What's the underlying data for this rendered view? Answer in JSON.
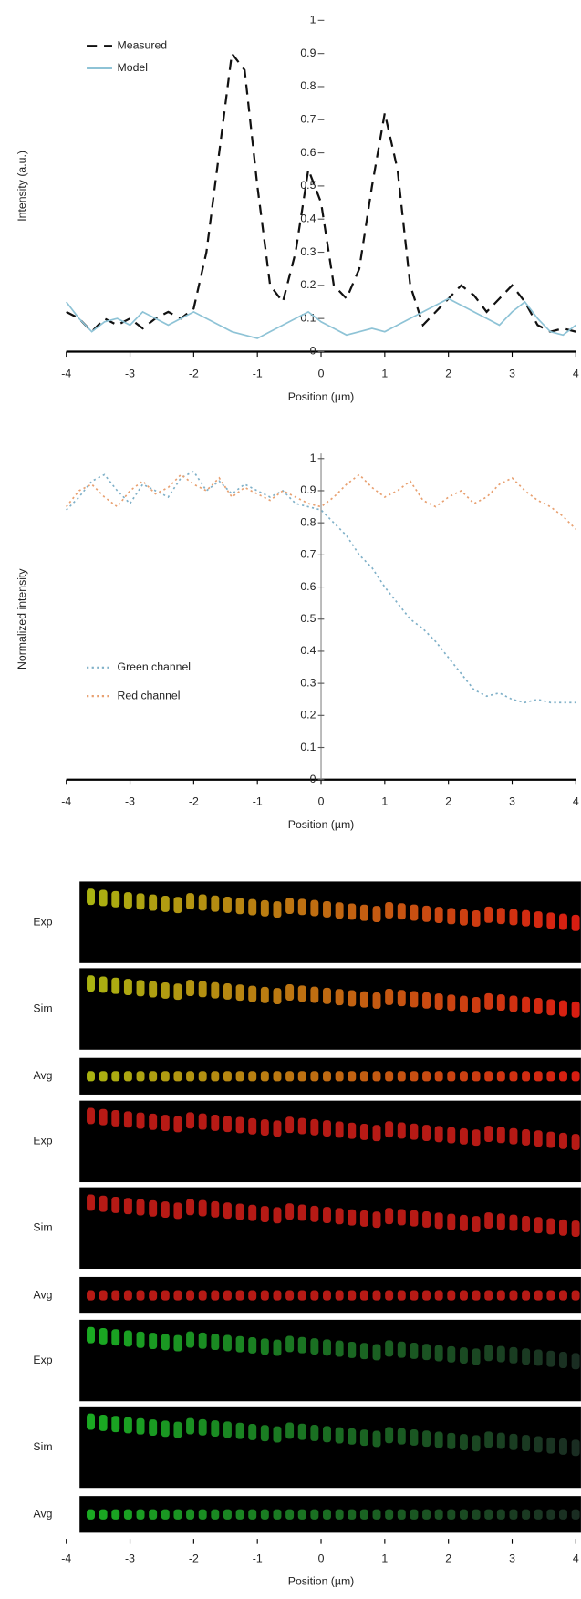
{
  "chart_data": [
    {
      "type": "line",
      "y_label": "Intensity (a.u.)",
      "x_label": "Position (µm)",
      "x": [
        -4,
        -3.8,
        -3.6,
        -3.4,
        -3.2,
        -3,
        -2.8,
        -2.6,
        -2.4,
        -2.2,
        -2,
        -1.8,
        -1.6,
        -1.4,
        -1.2,
        -1,
        -0.8,
        -0.6,
        -0.4,
        -0.2,
        0,
        0.2,
        0.4,
        0.6,
        0.8,
        1,
        1.2,
        1.4,
        1.6,
        1.8,
        2,
        2.2,
        2.4,
        2.6,
        2.8,
        3,
        3.2,
        3.4,
        3.6,
        3.8,
        4
      ],
      "xlim": [
        -4,
        4
      ],
      "xticks": [
        -4,
        -3,
        -2,
        -1,
        0,
        1,
        2,
        3,
        4
      ],
      "ylim": [
        0,
        1
      ],
      "yticks": [
        0,
        0.1,
        0.2,
        0.3,
        0.4,
        0.5,
        0.6,
        0.7,
        0.8,
        0.9,
        1
      ],
      "legend": "upper left",
      "series": [
        {
          "name": "Measured",
          "color": "#111111",
          "style": "dashed",
          "values": [
            0.12,
            0.1,
            0.06,
            0.1,
            0.08,
            0.1,
            0.07,
            0.1,
            0.12,
            0.1,
            0.13,
            0.3,
            0.6,
            0.9,
            0.85,
            0.5,
            0.2,
            0.15,
            0.3,
            0.55,
            0.45,
            0.2,
            0.16,
            0.25,
            0.5,
            0.72,
            0.55,
            0.2,
            0.08,
            0.12,
            0.16,
            0.2,
            0.17,
            0.12,
            0.16,
            0.2,
            0.15,
            0.08,
            0.06,
            0.07,
            0.06
          ]
        },
        {
          "name": "Model",
          "color": "#8ec3d6",
          "style": "solid",
          "values": [
            0.15,
            0.1,
            0.06,
            0.09,
            0.1,
            0.08,
            0.12,
            0.1,
            0.08,
            0.1,
            0.12,
            0.1,
            0.08,
            0.06,
            0.05,
            0.04,
            0.06,
            0.08,
            0.1,
            0.12,
            0.09,
            0.07,
            0.05,
            0.06,
            0.07,
            0.06,
            0.08,
            0.1,
            0.12,
            0.14,
            0.16,
            0.14,
            0.12,
            0.1,
            0.08,
            0.12,
            0.15,
            0.1,
            0.06,
            0.05,
            0.08
          ]
        }
      ]
    },
    {
      "type": "line",
      "y_label": "Normalized intensity",
      "x_label": "Position (µm)",
      "x": [
        -4,
        -3.8,
        -3.6,
        -3.4,
        -3.2,
        -3,
        -2.8,
        -2.6,
        -2.4,
        -2.2,
        -2,
        -1.8,
        -1.6,
        -1.4,
        -1.2,
        -1,
        -0.8,
        -0.6,
        -0.4,
        -0.2,
        0,
        0.2,
        0.4,
        0.6,
        0.8,
        1,
        1.2,
        1.4,
        1.6,
        1.8,
        2,
        2.2,
        2.4,
        2.6,
        2.8,
        3,
        3.2,
        3.4,
        3.6,
        3.8,
        4
      ],
      "xlim": [
        -4,
        4
      ],
      "xticks": [
        -4,
        -3,
        -2,
        -1,
        0,
        1,
        2,
        3,
        4
      ],
      "ylim": [
        0,
        1
      ],
      "yticks": [
        0,
        0.1,
        0.2,
        0.3,
        0.4,
        0.5,
        0.6,
        0.7,
        0.8,
        0.9,
        1
      ],
      "legend": "lower left",
      "series": [
        {
          "name": "Green channel",
          "color": "#7fb0c8",
          "style": "dotted",
          "values": [
            0.84,
            0.88,
            0.93,
            0.95,
            0.9,
            0.86,
            0.92,
            0.9,
            0.88,
            0.94,
            0.96,
            0.9,
            0.93,
            0.89,
            0.92,
            0.9,
            0.88,
            0.9,
            0.86,
            0.85,
            0.84,
            0.8,
            0.76,
            0.7,
            0.66,
            0.6,
            0.55,
            0.5,
            0.47,
            0.43,
            0.38,
            0.33,
            0.28,
            0.26,
            0.27,
            0.25,
            0.24,
            0.25,
            0.24,
            0.24,
            0.24
          ]
        },
        {
          "name": "Red channel",
          "color": "#e8a070",
          "style": "dotted",
          "values": [
            0.85,
            0.9,
            0.92,
            0.88,
            0.85,
            0.9,
            0.93,
            0.89,
            0.91,
            0.95,
            0.92,
            0.9,
            0.94,
            0.88,
            0.91,
            0.89,
            0.87,
            0.9,
            0.88,
            0.86,
            0.85,
            0.88,
            0.92,
            0.95,
            0.91,
            0.88,
            0.9,
            0.93,
            0.87,
            0.85,
            0.88,
            0.9,
            0.86,
            0.88,
            0.92,
            0.94,
            0.9,
            0.87,
            0.85,
            0.82,
            0.78
          ]
        }
      ]
    }
  ],
  "image_panel": {
    "labels": [
      "Exp",
      "Sim",
      "Avg",
      "Exp",
      "Sim",
      "Avg",
      "Exp",
      "Sim",
      "Avg"
    ],
    "xticks": [
      -4,
      -3,
      -2,
      -1,
      0,
      1,
      2,
      3,
      4
    ],
    "x_label": "Position (µm)"
  }
}
